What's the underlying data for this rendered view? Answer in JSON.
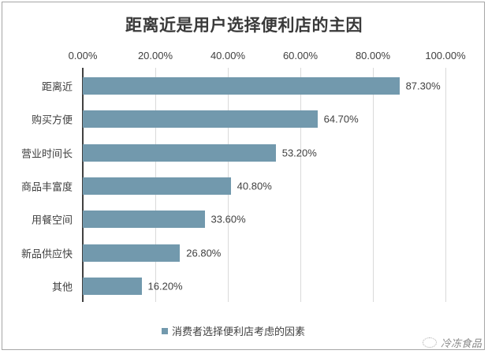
{
  "chart_data": {
    "type": "bar",
    "orientation": "horizontal",
    "title": "距离近是用户选择便利店的主因",
    "xlabel": "",
    "ylabel": "",
    "xlim": [
      0,
      100
    ],
    "x_ticks": [
      "0.00%",
      "20.00%",
      "40.00%",
      "60.00%",
      "80.00%",
      "100.00%"
    ],
    "x_axis_position": "top",
    "grid": true,
    "legend_position": "bottom",
    "categories": [
      "距离近",
      "购买方便",
      "营业时间长",
      "商品丰富度",
      "用餐空间",
      "新品供应快",
      "其他"
    ],
    "series": [
      {
        "name": "消费者选择便利店考虑的因素",
        "color": "#7299ad",
        "values": [
          87.3,
          64.7,
          53.2,
          40.8,
          33.6,
          26.8,
          16.2
        ],
        "labels": [
          "87.30%",
          "64.70%",
          "53.20%",
          "40.80%",
          "33.60%",
          "26.80%",
          "16.20%"
        ]
      }
    ]
  },
  "watermark": {
    "text": "冷冻食品",
    "icon": "wechat-icon"
  }
}
